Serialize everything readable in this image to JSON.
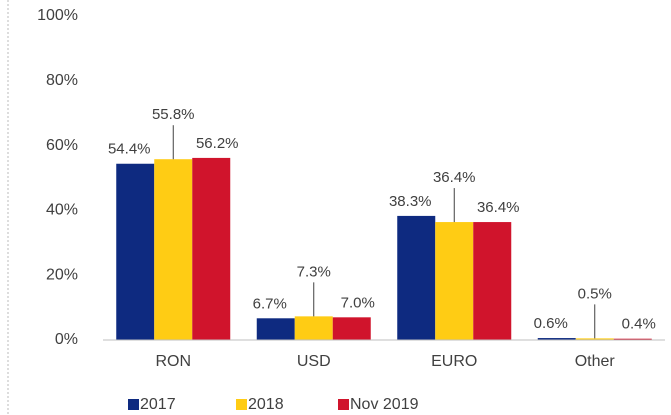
{
  "chart_data": {
    "type": "bar",
    "categories": [
      "RON",
      "USD",
      "EURO",
      "Other"
    ],
    "series": [
      {
        "name": "2017",
        "color": "#0e2a80",
        "values": [
          54.4,
          6.7,
          38.3,
          0.6
        ],
        "value_labels": [
          "54.4%",
          "6.7%",
          "38.3%",
          "0.6%"
        ]
      },
      {
        "name": "2018",
        "color": "#ffcc14",
        "values": [
          55.8,
          7.3,
          36.4,
          0.5
        ],
        "value_labels": [
          "55.8%",
          "7.3%",
          "36.4%",
          "0.5%"
        ]
      },
      {
        "name": "Nov 2019",
        "color": "#d0142c",
        "values": [
          56.2,
          7.0,
          36.4,
          0.4
        ],
        "value_labels": [
          "56.2%",
          "7.0%",
          "36.4%",
          "0.4%"
        ]
      }
    ],
    "ylim": [
      0,
      100
    ],
    "yticks": [
      {
        "value": 0,
        "label": "0%"
      },
      {
        "value": 20,
        "label": "20%"
      },
      {
        "value": 40,
        "label": "40%"
      },
      {
        "value": 60,
        "label": "60%"
      },
      {
        "value": 80,
        "label": "80%"
      },
      {
        "value": 100,
        "label": "100%"
      }
    ],
    "grid": false,
    "legend": "bottom"
  }
}
